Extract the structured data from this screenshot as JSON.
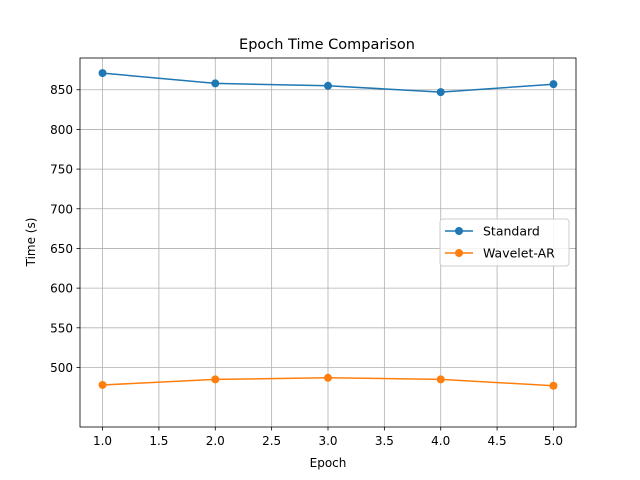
{
  "chart_data": {
    "type": "line",
    "title": "Epoch Time Comparison",
    "xlabel": "Epoch",
    "ylabel": "Time (s)",
    "xlim": [
      0.8,
      5.2
    ],
    "ylim": [
      425,
      890
    ],
    "xticks": [
      1.0,
      1.5,
      2.0,
      2.5,
      3.0,
      3.5,
      4.0,
      4.5,
      5.0
    ],
    "xtick_labels": [
      "1.0",
      "1.5",
      "2.0",
      "2.5",
      "3.0",
      "3.5",
      "4.0",
      "4.5",
      "5.0"
    ],
    "yticks": [
      500,
      550,
      600,
      650,
      700,
      750,
      800,
      850
    ],
    "ytick_labels": [
      "500",
      "550",
      "600",
      "650",
      "700",
      "750",
      "800",
      "850"
    ],
    "grid": true,
    "legend_position": "center-right",
    "x": [
      1,
      2,
      3,
      4,
      5
    ],
    "series": [
      {
        "name": "Standard",
        "color": "#1f77b4",
        "values": [
          871,
          858,
          855,
          847,
          857
        ]
      },
      {
        "name": "Wavelet-AR",
        "color": "#ff7f0e",
        "values": [
          478,
          485,
          487,
          485,
          477
        ]
      }
    ]
  }
}
